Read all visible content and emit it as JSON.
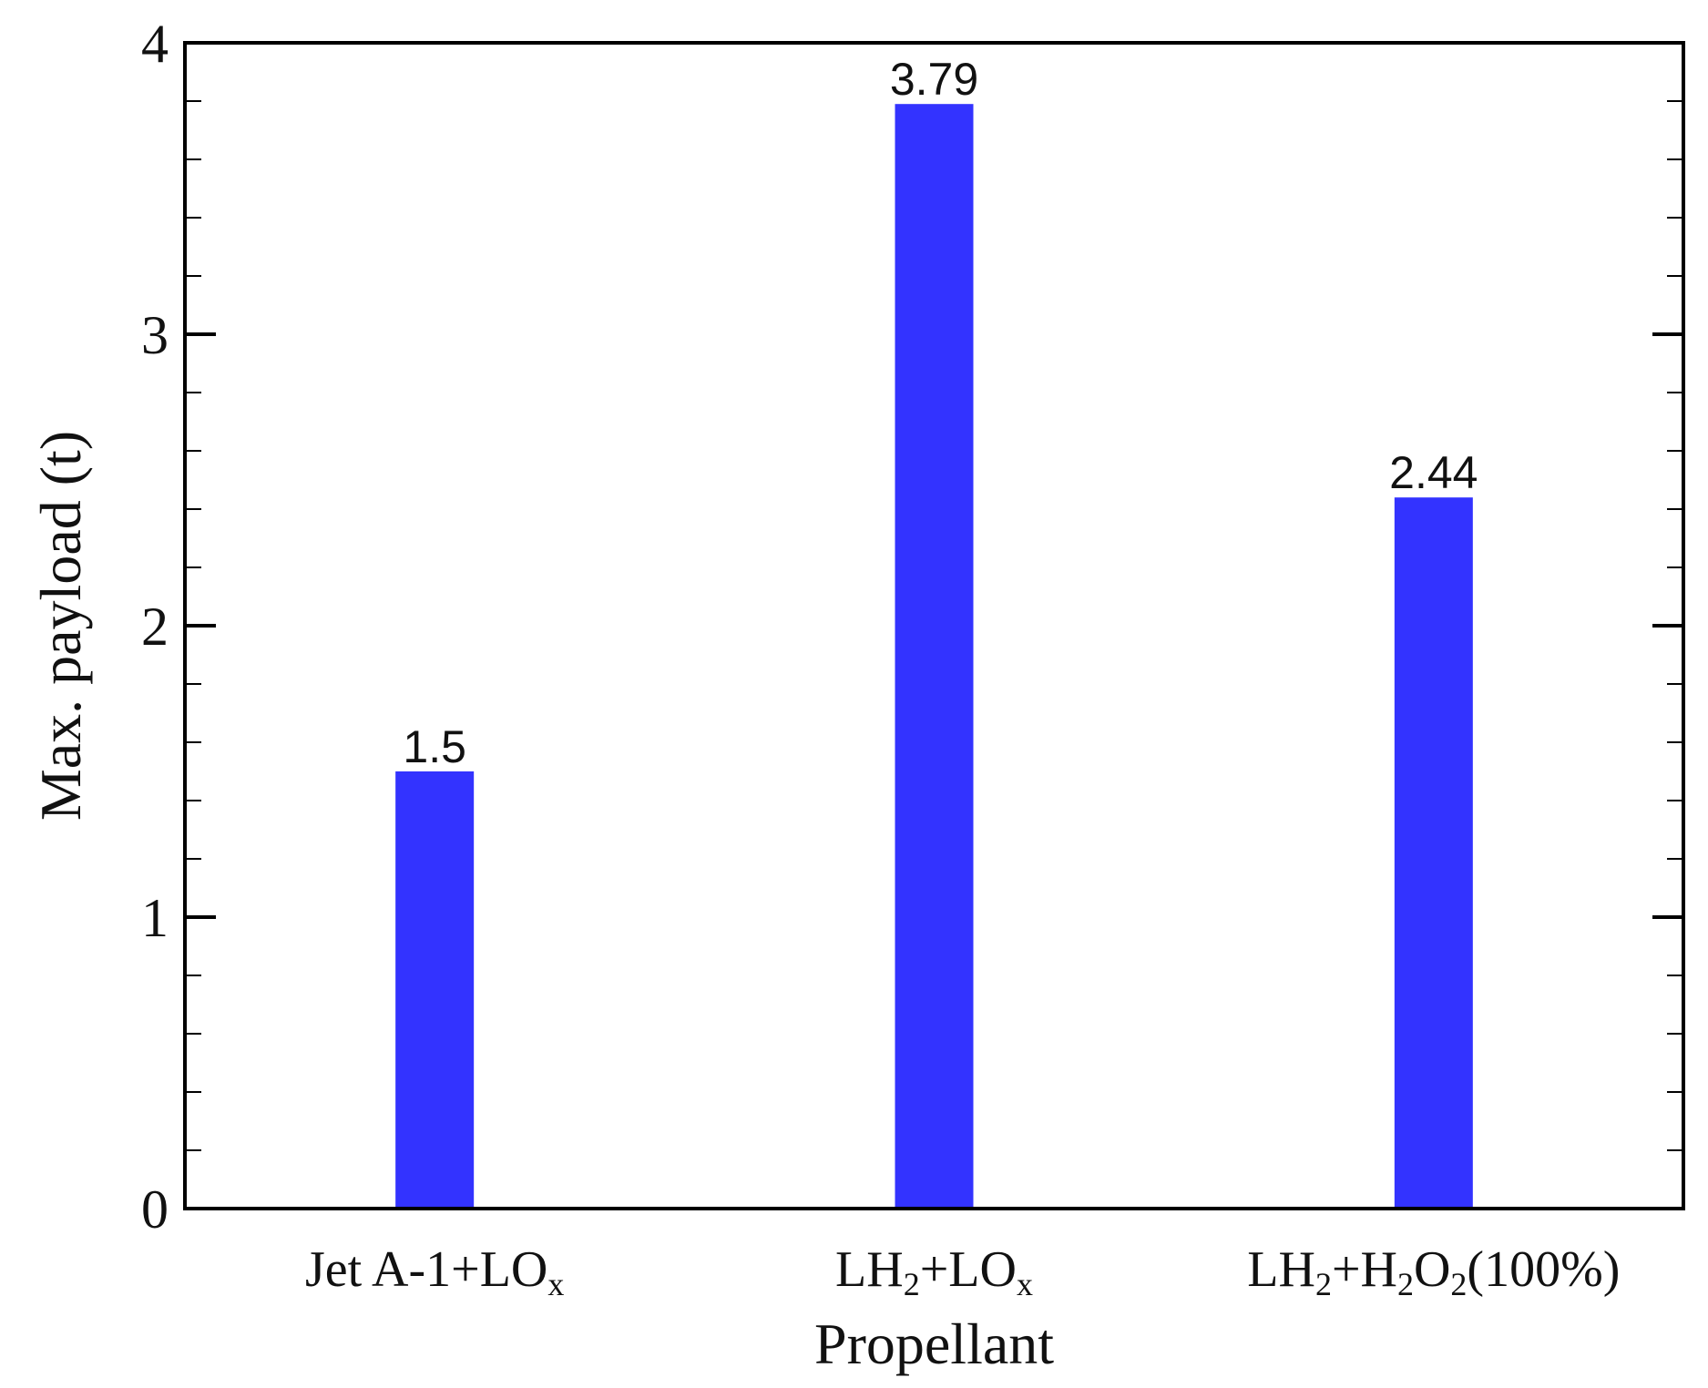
{
  "chart_data": {
    "type": "bar",
    "categories": [
      {
        "base": "Jet A-1+LO",
        "sub": "x"
      },
      {
        "parts": [
          {
            "t": "LH"
          },
          {
            "t": "2",
            "sub": true
          },
          {
            "t": "+LO"
          },
          {
            "t": "x",
            "sub": true
          }
        ]
      },
      {
        "parts": [
          {
            "t": "LH"
          },
          {
            "t": "2",
            "sub": true
          },
          {
            "t": "+H"
          },
          {
            "t": "2",
            "sub": true
          },
          {
            "t": "O"
          },
          {
            "t": "2",
            "sub": true
          },
          {
            "t": "(100%)"
          }
        ]
      }
    ],
    "values": [
      1.5,
      3.79,
      2.44
    ],
    "data_labels": [
      "1.5",
      "3.79",
      "2.44"
    ],
    "xlabel": "Propellant",
    "ylabel": "Max. payload (t)",
    "ylim": [
      0,
      4
    ],
    "yticks": [
      0,
      1,
      2,
      3,
      4
    ],
    "ytick_labels": [
      "0",
      "1",
      "2",
      "3",
      "4"
    ],
    "minor_tick_step": 0.2,
    "bar_color": "#3333ff",
    "grid": false,
    "legend": "none"
  }
}
